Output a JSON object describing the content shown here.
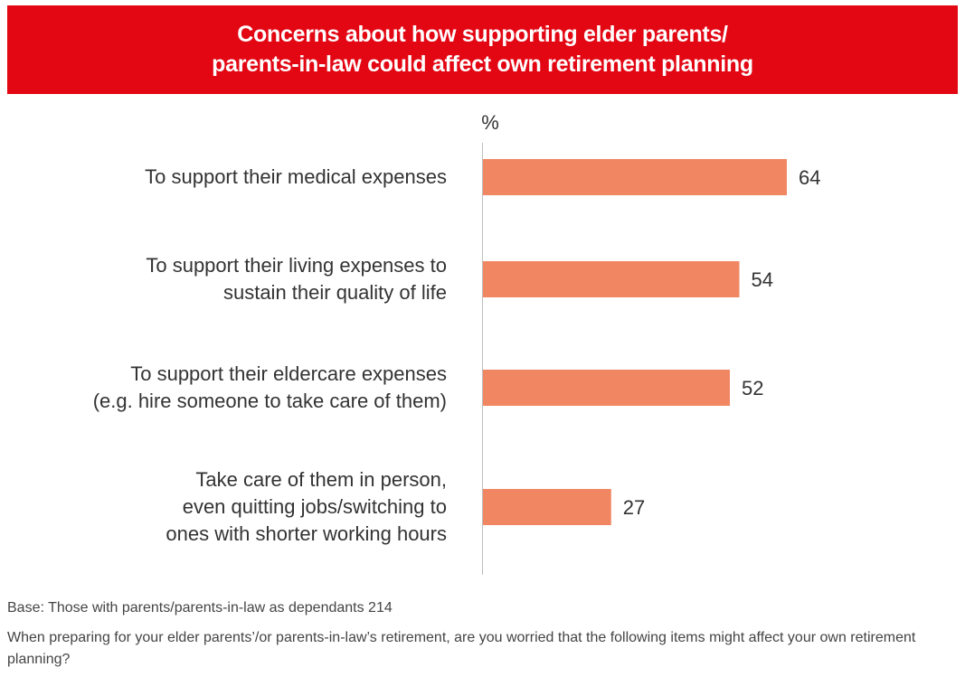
{
  "header": {
    "title_line1": "Concerns about how supporting elder parents/",
    "title_line2": "parents-in-law could affect own retirement planning",
    "background_color": "#e30613"
  },
  "chart_data": {
    "type": "bar",
    "orientation": "horizontal",
    "unit_label": "%",
    "categories": [
      [
        "To support their medical expenses"
      ],
      [
        "To support their living expenses to",
        "sustain their quality of life"
      ],
      [
        "To support their eldercare expenses",
        "(e.g. hire someone to take care of them)"
      ],
      [
        "Take care of them in person,",
        "even quitting jobs/switching to",
        "ones with shorter working hours"
      ]
    ],
    "values": [
      64,
      54,
      52,
      27
    ],
    "data_labels": [
      "64",
      "54",
      "52",
      "27"
    ],
    "xlim": [
      0,
      100
    ],
    "bar_color": "#f08662",
    "grid": false,
    "legend": "none"
  },
  "footer": {
    "base": "Base: Those with parents/parents-in-law as dependants 214",
    "question": "When preparing for your elder parents’/or parents-in-law’s retirement, are you worried that the following items might affect your own retirement planning?"
  }
}
